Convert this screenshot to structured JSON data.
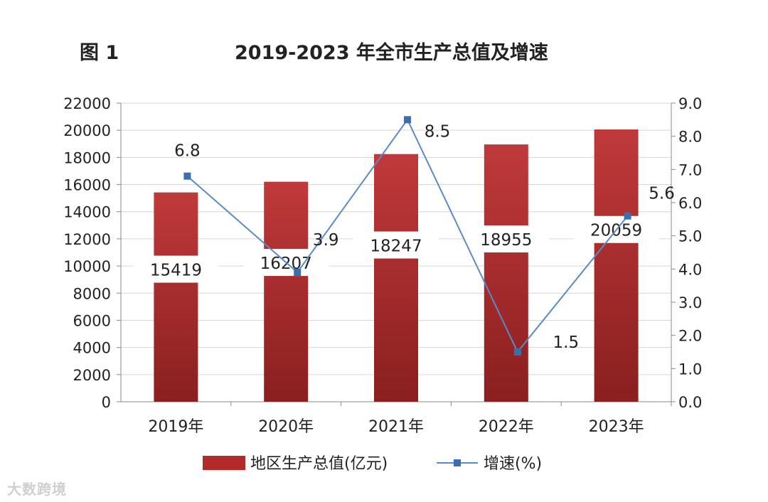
{
  "header": {
    "figure_label": "图 1",
    "title": "2019-2023 年全市生产总值及增速"
  },
  "chart_data": {
    "type": "bar+line",
    "categories": [
      "2019年",
      "2020年",
      "2021年",
      "2022年",
      "2023年"
    ],
    "series": [
      {
        "name": "地区生产总值(亿元)",
        "type": "bar",
        "axis": "left",
        "values": [
          15419,
          16207,
          18247,
          18955,
          20059
        ],
        "labels": [
          "15419",
          "16207",
          "18247",
          "18955",
          "20059"
        ],
        "color": "#b22a2a"
      },
      {
        "name": "增速(%)",
        "type": "line",
        "axis": "right",
        "values": [
          6.8,
          3.9,
          8.5,
          1.5,
          5.6
        ],
        "labels": [
          "6.8",
          "3.9",
          "8.5",
          "1.5",
          "5.6"
        ],
        "color": "#5b8ac6",
        "marker_color": "#3a6fb0"
      }
    ],
    "y_left": {
      "range": [
        0,
        22000
      ],
      "ticks": [
        "0",
        "2000",
        "4000",
        "6000",
        "8000",
        "10000",
        "12000",
        "14000",
        "16000",
        "18000",
        "20000",
        "22000"
      ]
    },
    "y_right": {
      "range": [
        0,
        9
      ],
      "ticks": [
        "0.0",
        "1.0",
        "2.0",
        "3.0",
        "4.0",
        "5.0",
        "6.0",
        "7.0",
        "8.0",
        "9.0"
      ]
    },
    "grid": true,
    "legend": "bottom"
  },
  "watermark": "大数跨境"
}
